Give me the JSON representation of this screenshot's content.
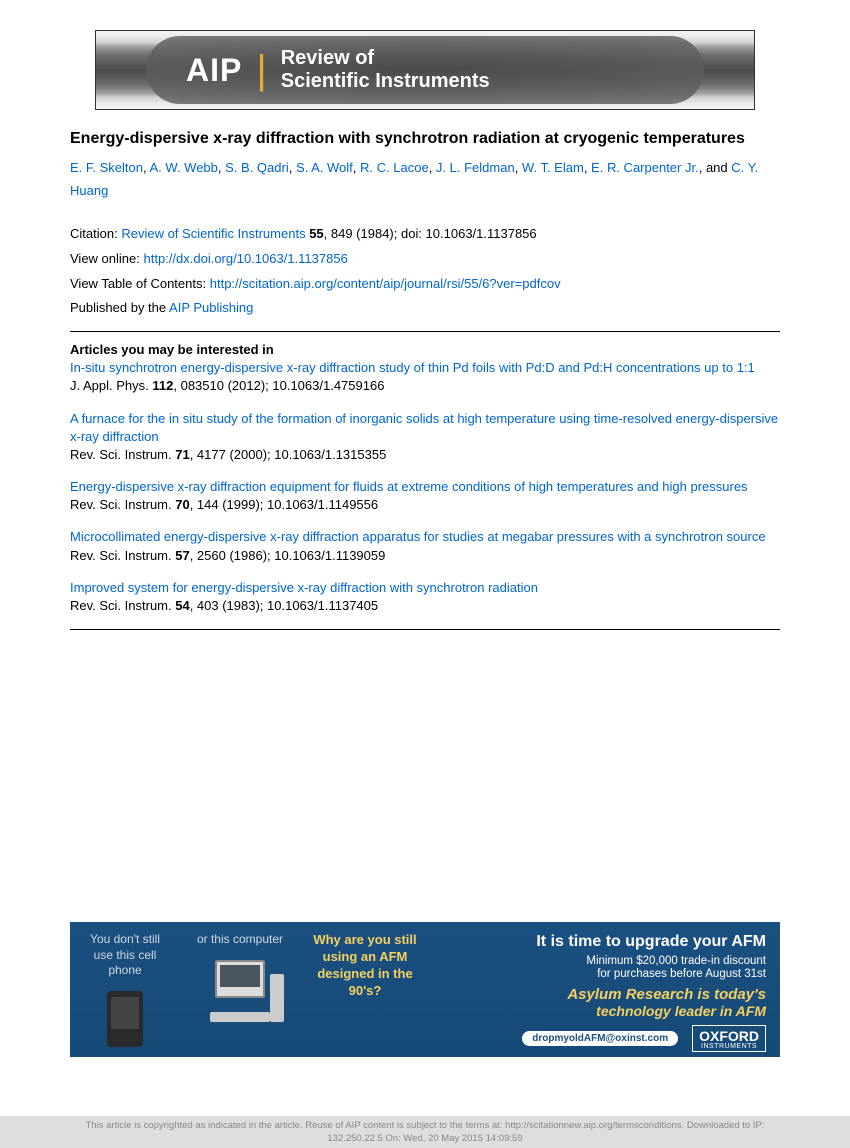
{
  "banner": {
    "logo": "AIP",
    "title_line1": "Review of",
    "title_line2": "Scientific Instruments"
  },
  "article": {
    "title": "Energy-dispersive x-ray diffraction with synchrotron radiation at cryogenic temperatures",
    "authors": [
      "E. F. Skelton",
      "A. W. Webb",
      "S. B. Qadri",
      "S. A. Wolf",
      "R. C. Lacoe",
      "J. L. Feldman",
      "W. T. Elam",
      "E. R. Carpenter Jr.",
      "C. Y. Huang"
    ]
  },
  "meta": {
    "citation_label": "Citation:",
    "journal": "Review of Scientific Instruments",
    "vol": "55",
    "citation_tail": ", 849 (1984); doi: 10.1063/1.1137856",
    "view_online_label": "View online:",
    "view_online_link": "http://dx.doi.org/10.1063/1.1137856",
    "toc_label": "View Table of Contents:",
    "toc_link": "http://scitation.aip.org/content/aip/journal/rsi/55/6?ver=pdfcov",
    "pub_label": "Published by the",
    "publisher": "AIP Publishing"
  },
  "related": {
    "heading": "Articles you may be interested in",
    "items": [
      {
        "title": "In-situ synchrotron energy-dispersive x-ray diffraction study of thin Pd foils with Pd:D and Pd:H concentrations up to 1:1",
        "cite_pre": "J. Appl. Phys. ",
        "vol": "112",
        "cite_post": ", 083510 (2012); 10.1063/1.4759166"
      },
      {
        "title": "A furnace for the in situ study of the formation of inorganic solids at high temperature using time-resolved energy-dispersive x-ray diffraction",
        "cite_pre": "Rev. Sci. Instrum. ",
        "vol": "71",
        "cite_post": ", 4177 (2000); 10.1063/1.1315355"
      },
      {
        "title": "Energy-dispersive x-ray diffraction equipment for fluids at extreme conditions of high temperatures and high pressures",
        "cite_pre": "Rev. Sci. Instrum. ",
        "vol": "70",
        "cite_post": ", 144 (1999); 10.1063/1.1149556"
      },
      {
        "title": "Microcollimated energy-dispersive x-ray diffraction apparatus for studies at megabar pressures with a synchrotron source",
        "cite_pre": "Rev. Sci. Instrum. ",
        "vol": "57",
        "cite_post": ", 2560 (1986); 10.1063/1.1139059"
      },
      {
        "title": "Improved system for energy-dispersive x-ray diffraction with synchrotron radiation",
        "cite_pre": "Rev. Sci. Instrum. ",
        "vol": "54",
        "cite_post": ", 403 (1983); 10.1063/1.1137405"
      }
    ]
  },
  "ad": {
    "col1": "You don't still use this cell phone",
    "col2": "or this computer",
    "why": "Why are you still using an AFM designed in the 90's?",
    "headline": "It is time to upgrade your AFM",
    "sub1": "Minimum $20,000 trade-in discount",
    "sub2": "for purchases before August 31st",
    "brand1": "Asylum Research is today's",
    "brand2": "technology leader in AFM",
    "email": "dropmyoldAFM@oxinst.com",
    "oxford": "OXFORD",
    "oxford_small": "INSTRUMENTS"
  },
  "copyright": {
    "line1": "This article is copyrighted as indicated in the article. Reuse of AIP content is subject to the terms at: http://scitationnew.aip.org/termsconditions. Downloaded to IP:",
    "line2": "132.250.22.5 On: Wed, 20 May 2015 14:09:59"
  }
}
